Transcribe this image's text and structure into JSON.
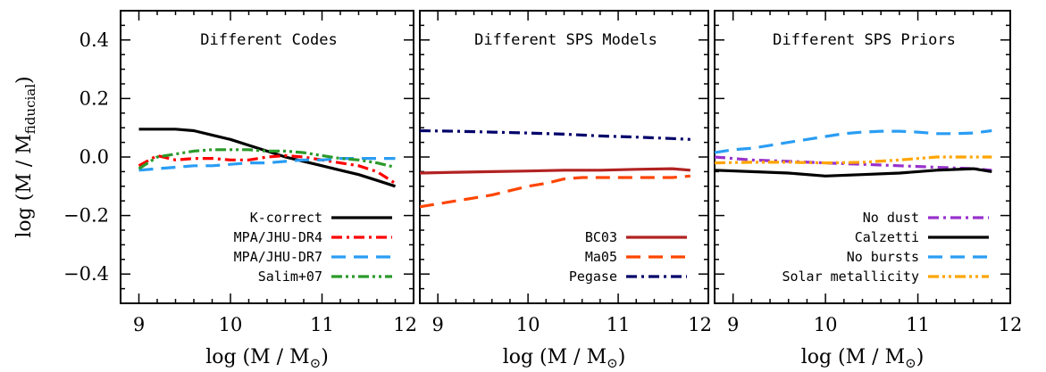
{
  "chart_data": {
    "type": "line",
    "ylabel": {
      "pre": "log (M / M",
      "sub": "fiducial",
      "post": ")"
    },
    "xlabel": {
      "pre": "log (M / M",
      "sub": "⊙",
      "post": ")"
    },
    "ylim": [
      -0.5,
      0.5
    ],
    "y_ticks": [
      0.4,
      0.2,
      0.0,
      -0.2,
      -0.4
    ],
    "y_tick_labels": [
      "0.4",
      "0.2",
      "0.0",
      "−0.2",
      "−0.4"
    ],
    "panels": [
      {
        "title": "Different Codes",
        "xlim": [
          8.8,
          12
        ],
        "x_ticks": [
          9,
          10,
          11,
          12
        ],
        "x_tick_labels": [
          "9",
          "10",
          "11",
          "12"
        ],
        "series": [
          {
            "name": "K-correct",
            "color": "#000000",
            "dash": "solid",
            "x": [
              9.0,
              9.2,
              9.4,
              9.6,
              9.8,
              10.0,
              10.2,
              10.4,
              10.6,
              10.8,
              11.0,
              11.2,
              11.4,
              11.6,
              11.8
            ],
            "y": [
              0.095,
              0.095,
              0.095,
              0.09,
              0.075,
              0.06,
              0.04,
              0.02,
              0.0,
              -0.015,
              -0.03,
              -0.045,
              -0.06,
              -0.08,
              -0.1
            ]
          },
          {
            "name": "MPA/JHU-DR4",
            "color": "#ff0000",
            "dash": "dashdot",
            "x": [
              9.0,
              9.2,
              9.4,
              9.6,
              9.8,
              10.0,
              10.2,
              10.4,
              10.6,
              10.8,
              11.0,
              11.2,
              11.4,
              11.6,
              11.8
            ],
            "y": [
              -0.03,
              0.005,
              -0.01,
              -0.005,
              -0.005,
              -0.01,
              -0.01,
              0.0,
              0.005,
              0.0,
              -0.01,
              -0.02,
              -0.03,
              -0.05,
              -0.09
            ]
          },
          {
            "name": "MPA/JHU-DR7",
            "color": "#2a9df4",
            "dash": "dashed",
            "x": [
              9.0,
              9.2,
              9.4,
              9.6,
              9.8,
              10.0,
              10.2,
              10.4,
              10.6,
              10.8,
              11.0,
              11.2,
              11.4,
              11.6,
              11.8
            ],
            "y": [
              -0.045,
              -0.04,
              -0.035,
              -0.03,
              -0.03,
              -0.025,
              -0.02,
              -0.02,
              -0.015,
              -0.01,
              -0.01,
              -0.005,
              -0.005,
              -0.005,
              -0.005
            ]
          },
          {
            "name": "Salim+07",
            "color": "#2a9a2a",
            "dash": "dashdotdot",
            "x": [
              9.0,
              9.2,
              9.4,
              9.6,
              9.8,
              10.0,
              10.2,
              10.4,
              10.6,
              10.8,
              11.0,
              11.2,
              11.4,
              11.6,
              11.8
            ],
            "y": [
              -0.04,
              0.0,
              0.01,
              0.02,
              0.025,
              0.025,
              0.025,
              0.02,
              0.02,
              0.015,
              0.005,
              -0.005,
              -0.01,
              -0.02,
              -0.035
            ]
          }
        ],
        "legend": [
          "K-correct",
          "MPA/JHU-DR4",
          "MPA/JHU-DR7",
          "Salim+07"
        ]
      },
      {
        "title": "Different SPS Models",
        "xlim": [
          8.8,
          12
        ],
        "x_ticks": [
          9,
          10,
          11,
          12
        ],
        "x_tick_labels": [
          "9",
          "10",
          "11",
          "12"
        ],
        "series": [
          {
            "name": "BC03",
            "color": "#b22222",
            "dash": "solid",
            "x": [
              8.8,
              9.2,
              9.6,
              10.0,
              10.4,
              10.8,
              11.2,
              11.6,
              11.8
            ],
            "y": [
              -0.055,
              -0.052,
              -0.05,
              -0.048,
              -0.045,
              -0.045,
              -0.042,
              -0.04,
              -0.045
            ]
          },
          {
            "name": "Ma05",
            "color": "#ff4500",
            "dash": "dashed",
            "x": [
              8.8,
              9.0,
              9.2,
              9.4,
              9.6,
              9.8,
              10.0,
              10.2,
              10.4,
              10.6,
              10.8,
              11.0,
              11.2,
              11.4,
              11.6,
              11.8
            ],
            "y": [
              -0.17,
              -0.16,
              -0.15,
              -0.14,
              -0.13,
              -0.115,
              -0.1,
              -0.09,
              -0.075,
              -0.07,
              -0.07,
              -0.07,
              -0.07,
              -0.07,
              -0.07,
              -0.065
            ]
          },
          {
            "name": "Pegase",
            "color": "#00006b",
            "dash": "dashdot",
            "x": [
              8.8,
              9.2,
              9.6,
              10.0,
              10.4,
              10.8,
              11.2,
              11.6,
              11.8
            ],
            "y": [
              0.09,
              0.088,
              0.085,
              0.082,
              0.078,
              0.072,
              0.068,
              0.063,
              0.06
            ]
          }
        ],
        "legend": [
          "BC03",
          "Ma05",
          "Pegase"
        ]
      },
      {
        "title": "Different SPS Priors",
        "xlim": [
          8.8,
          12
        ],
        "x_ticks": [
          9,
          10,
          11,
          12
        ],
        "x_tick_labels": [
          "9",
          "10",
          "11",
          "12"
        ],
        "series": [
          {
            "name": "No dust",
            "color": "#9932cc",
            "dash": "dashdot",
            "x": [
              8.8,
              9.2,
              9.6,
              10.0,
              10.4,
              10.8,
              11.2,
              11.6,
              11.8
            ],
            "y": [
              0.0,
              -0.01,
              -0.015,
              -0.02,
              -0.025,
              -0.03,
              -0.035,
              -0.04,
              -0.045
            ]
          },
          {
            "name": "Calzetti",
            "color": "#000000",
            "dash": "solid",
            "x": [
              8.8,
              9.2,
              9.6,
              10.0,
              10.4,
              10.8,
              11.2,
              11.6,
              11.8
            ],
            "y": [
              -0.045,
              -0.05,
              -0.055,
              -0.065,
              -0.06,
              -0.055,
              -0.045,
              -0.04,
              -0.05
            ]
          },
          {
            "name": "No bursts",
            "color": "#2a9df4",
            "dash": "dashed",
            "x": [
              8.8,
              9.0,
              9.2,
              9.4,
              9.6,
              9.8,
              10.0,
              10.2,
              10.4,
              10.6,
              10.8,
              11.0,
              11.2,
              11.4,
              11.6,
              11.8
            ],
            "y": [
              0.015,
              0.025,
              0.03,
              0.04,
              0.05,
              0.06,
              0.07,
              0.08,
              0.085,
              0.088,
              0.088,
              0.085,
              0.08,
              0.08,
              0.082,
              0.09
            ]
          },
          {
            "name": "Solar metallicity",
            "color": "#ffa500",
            "dash": "dashdotdot",
            "x": [
              8.8,
              9.2,
              9.6,
              10.0,
              10.4,
              10.8,
              11.2,
              11.6,
              11.8
            ],
            "y": [
              -0.02,
              -0.018,
              -0.018,
              -0.02,
              -0.018,
              -0.01,
              0.0,
              0.0,
              0.0
            ]
          }
        ],
        "legend": [
          "No dust",
          "Calzetti",
          "No bursts",
          "Solar metallicity"
        ]
      }
    ]
  }
}
